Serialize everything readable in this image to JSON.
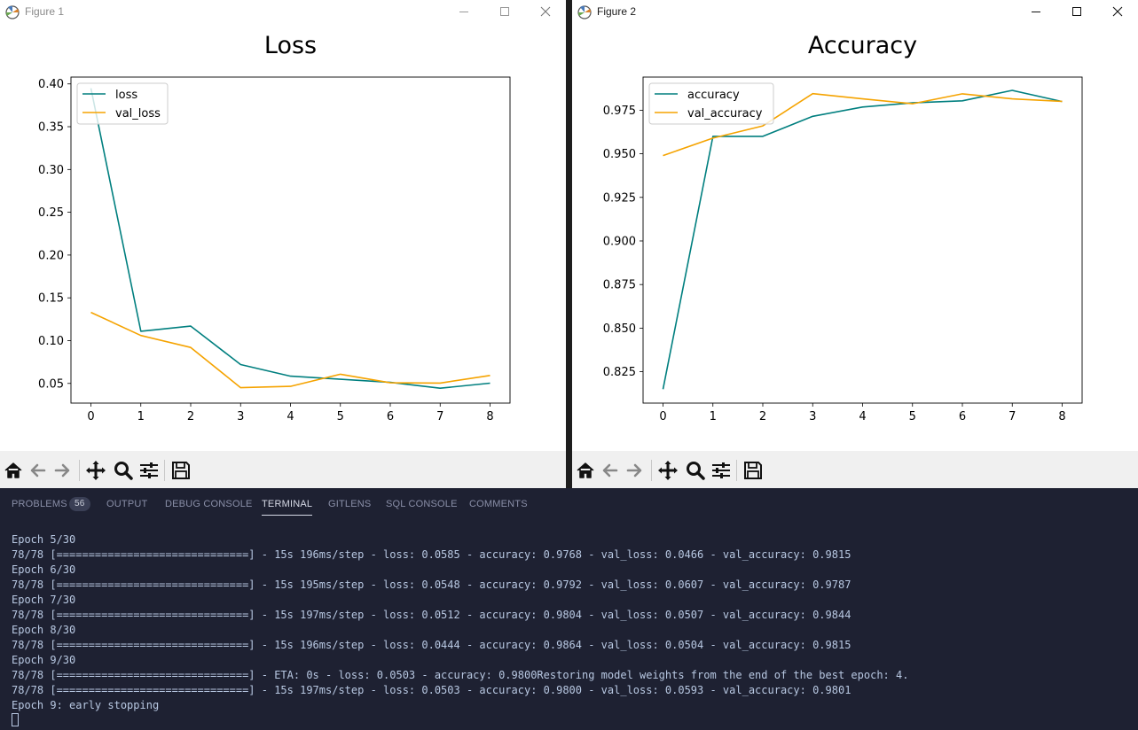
{
  "figure1": {
    "window_title": "Figure 1",
    "icons": {
      "app": "matplotlib-icon",
      "minimize": "minimize-icon",
      "maximize": "maximize-icon",
      "close": "close-icon"
    }
  },
  "figure2": {
    "window_title": "Figure 2",
    "icons": {
      "app": "matplotlib-icon",
      "minimize": "minimize-icon",
      "maximize": "maximize-icon",
      "close": "close-icon"
    }
  },
  "toolbar": {
    "icons": [
      "home-icon",
      "back-arrow-icon",
      "forward-arrow-icon",
      "pan-move-icon",
      "zoom-magnifier-icon",
      "configure-subplots-icon",
      "save-disk-icon"
    ]
  },
  "chart_data": [
    {
      "type": "line",
      "title": "Loss",
      "xlabel": "",
      "ylabel": "",
      "x": [
        0,
        1,
        2,
        3,
        4,
        5,
        6,
        7,
        8
      ],
      "xlim": [
        -0.4,
        8.4
      ],
      "ylim": [
        0.027,
        0.408
      ],
      "yticks": [
        0.05,
        0.1,
        0.15,
        0.2,
        0.25,
        0.3,
        0.35,
        0.4
      ],
      "ytick_labels": [
        "0.05",
        "0.10",
        "0.15",
        "0.20",
        "0.25",
        "0.30",
        "0.35",
        "0.40"
      ],
      "xtick_labels": [
        "0",
        "1",
        "2",
        "3",
        "4",
        "5",
        "6",
        "7",
        "8"
      ],
      "grid": false,
      "legend": "upper left",
      "series": [
        {
          "name": "loss",
          "color": "#007f7f",
          "values": [
            0.395,
            0.111,
            0.117,
            0.072,
            0.0585,
            0.0548,
            0.0512,
            0.0444,
            0.0503
          ]
        },
        {
          "name": "val_loss",
          "color": "#f5a300",
          "values": [
            0.133,
            0.106,
            0.092,
            0.045,
            0.0466,
            0.0607,
            0.0507,
            0.0504,
            0.0593
          ]
        }
      ]
    },
    {
      "type": "line",
      "title": "Accuracy",
      "xlabel": "",
      "ylabel": "",
      "x": [
        0,
        1,
        2,
        3,
        4,
        5,
        6,
        7,
        8
      ],
      "xlim": [
        -0.4,
        8.4
      ],
      "ylim": [
        0.807,
        0.994
      ],
      "yticks": [
        0.825,
        0.85,
        0.875,
        0.9,
        0.925,
        0.95,
        0.975
      ],
      "ytick_labels": [
        "0.825",
        "0.850",
        "0.875",
        "0.900",
        "0.925",
        "0.950",
        "0.975"
      ],
      "xtick_labels": [
        "0",
        "1",
        "2",
        "3",
        "4",
        "5",
        "6",
        "7",
        "8"
      ],
      "grid": false,
      "legend": "upper left",
      "series": [
        {
          "name": "accuracy",
          "color": "#007f7f",
          "values": [
            0.815,
            0.96,
            0.96,
            0.9715,
            0.9768,
            0.9792,
            0.9804,
            0.9864,
            0.98
          ]
        },
        {
          "name": "val_accuracy",
          "color": "#f5a300",
          "values": [
            0.949,
            0.959,
            0.966,
            0.9845,
            0.9815,
            0.9787,
            0.9844,
            0.9815,
            0.9801
          ]
        }
      ]
    }
  ],
  "panel": {
    "tabs": [
      {
        "label": "PROBLEMS",
        "badge": "56"
      },
      {
        "label": "OUTPUT"
      },
      {
        "label": "DEBUG CONSOLE"
      },
      {
        "label": "TERMINAL",
        "active": true
      },
      {
        "label": "GITLENS"
      },
      {
        "label": "SQL CONSOLE"
      },
      {
        "label": "COMMENTS"
      }
    ],
    "terminal_lines": [
      "Epoch 5/30",
      "78/78 [==============================] - 15s 196ms/step - loss: 0.0585 - accuracy: 0.9768 - val_loss: 0.0466 - val_accuracy: 0.9815",
      "Epoch 6/30",
      "78/78 [==============================] - 15s 195ms/step - loss: 0.0548 - accuracy: 0.9792 - val_loss: 0.0607 - val_accuracy: 0.9787",
      "Epoch 7/30",
      "78/78 [==============================] - 15s 197ms/step - loss: 0.0512 - accuracy: 0.9804 - val_loss: 0.0507 - val_accuracy: 0.9844",
      "Epoch 8/30",
      "78/78 [==============================] - 15s 196ms/step - loss: 0.0444 - accuracy: 0.9864 - val_loss: 0.0504 - val_accuracy: 0.9815",
      "Epoch 9/30",
      "78/78 [==============================] - ETA: 0s - loss: 0.0503 - accuracy: 0.9800Restoring model weights from the end of the best epoch: 4.",
      "78/78 [==============================] - 15s 197ms/step - loss: 0.0503 - accuracy: 0.9800 - val_loss: 0.0593 - val_accuracy: 0.9801",
      "Epoch 9: early stopping"
    ]
  }
}
